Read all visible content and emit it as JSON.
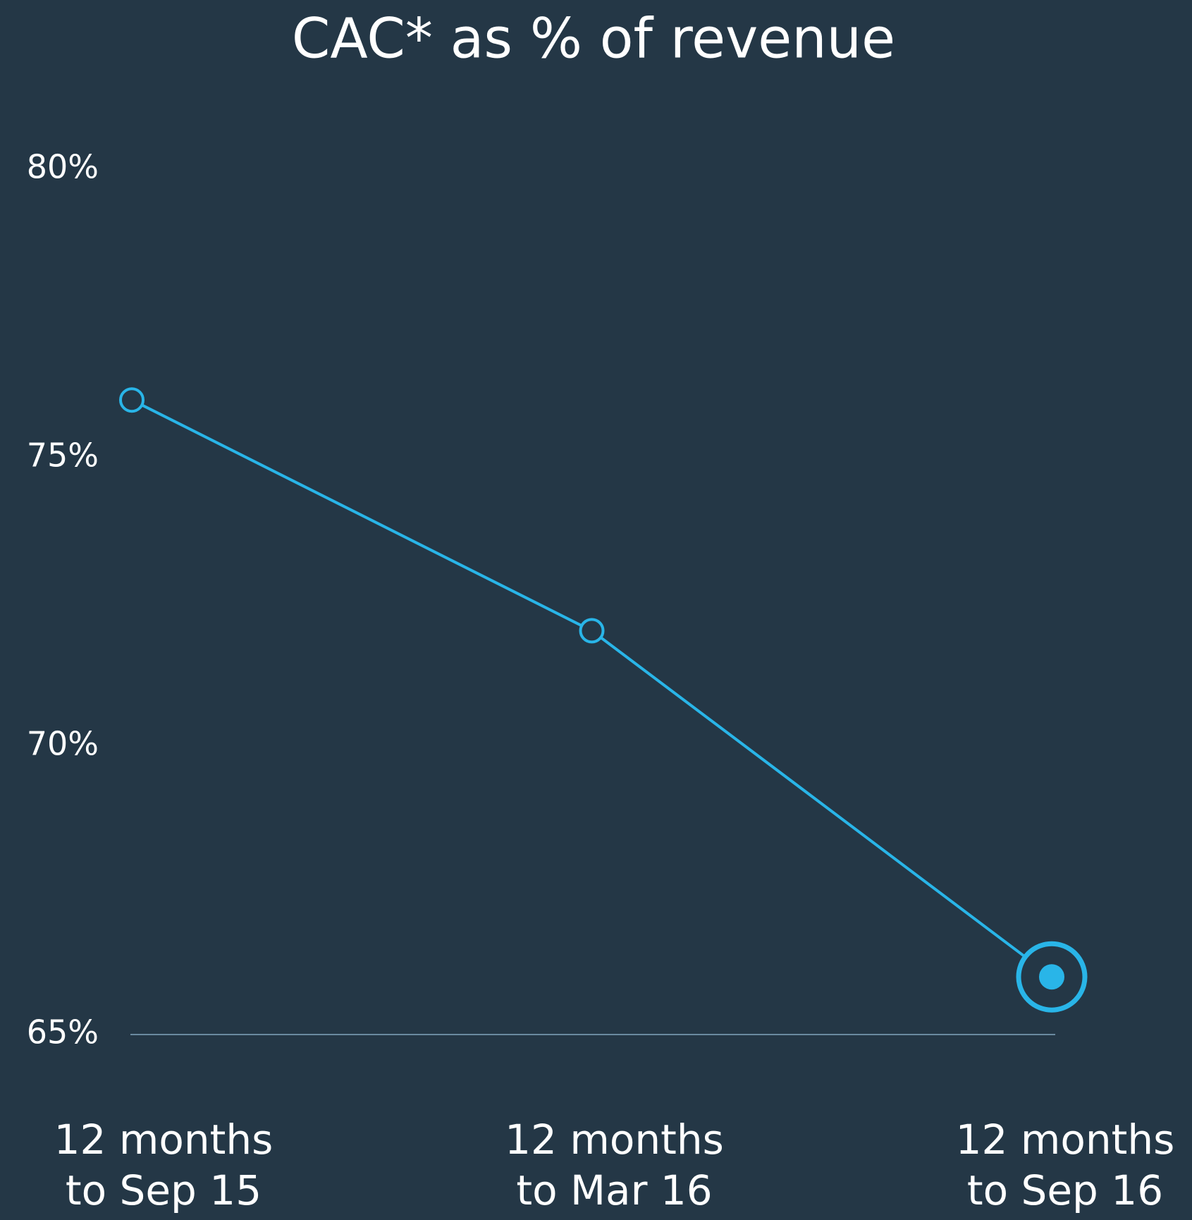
{
  "chart_data": {
    "type": "line",
    "title": "CAC* as % of revenue",
    "categories": [
      "12 months to Sep 15",
      "12 months to Mar 16",
      "12 months to Sep 16"
    ],
    "series": [
      {
        "name": "CAC as % of revenue",
        "color": "#29b5e8",
        "values": [
          76,
          72,
          66
        ]
      }
    ],
    "ylim": [
      65,
      80
    ],
    "yticks": [
      {
        "value": 80,
        "label": "80%"
      },
      {
        "value": 75,
        "label": "75%"
      },
      {
        "value": 70,
        "label": "70%"
      },
      {
        "value": 65,
        "label": "65%"
      }
    ],
    "grid": false
  }
}
